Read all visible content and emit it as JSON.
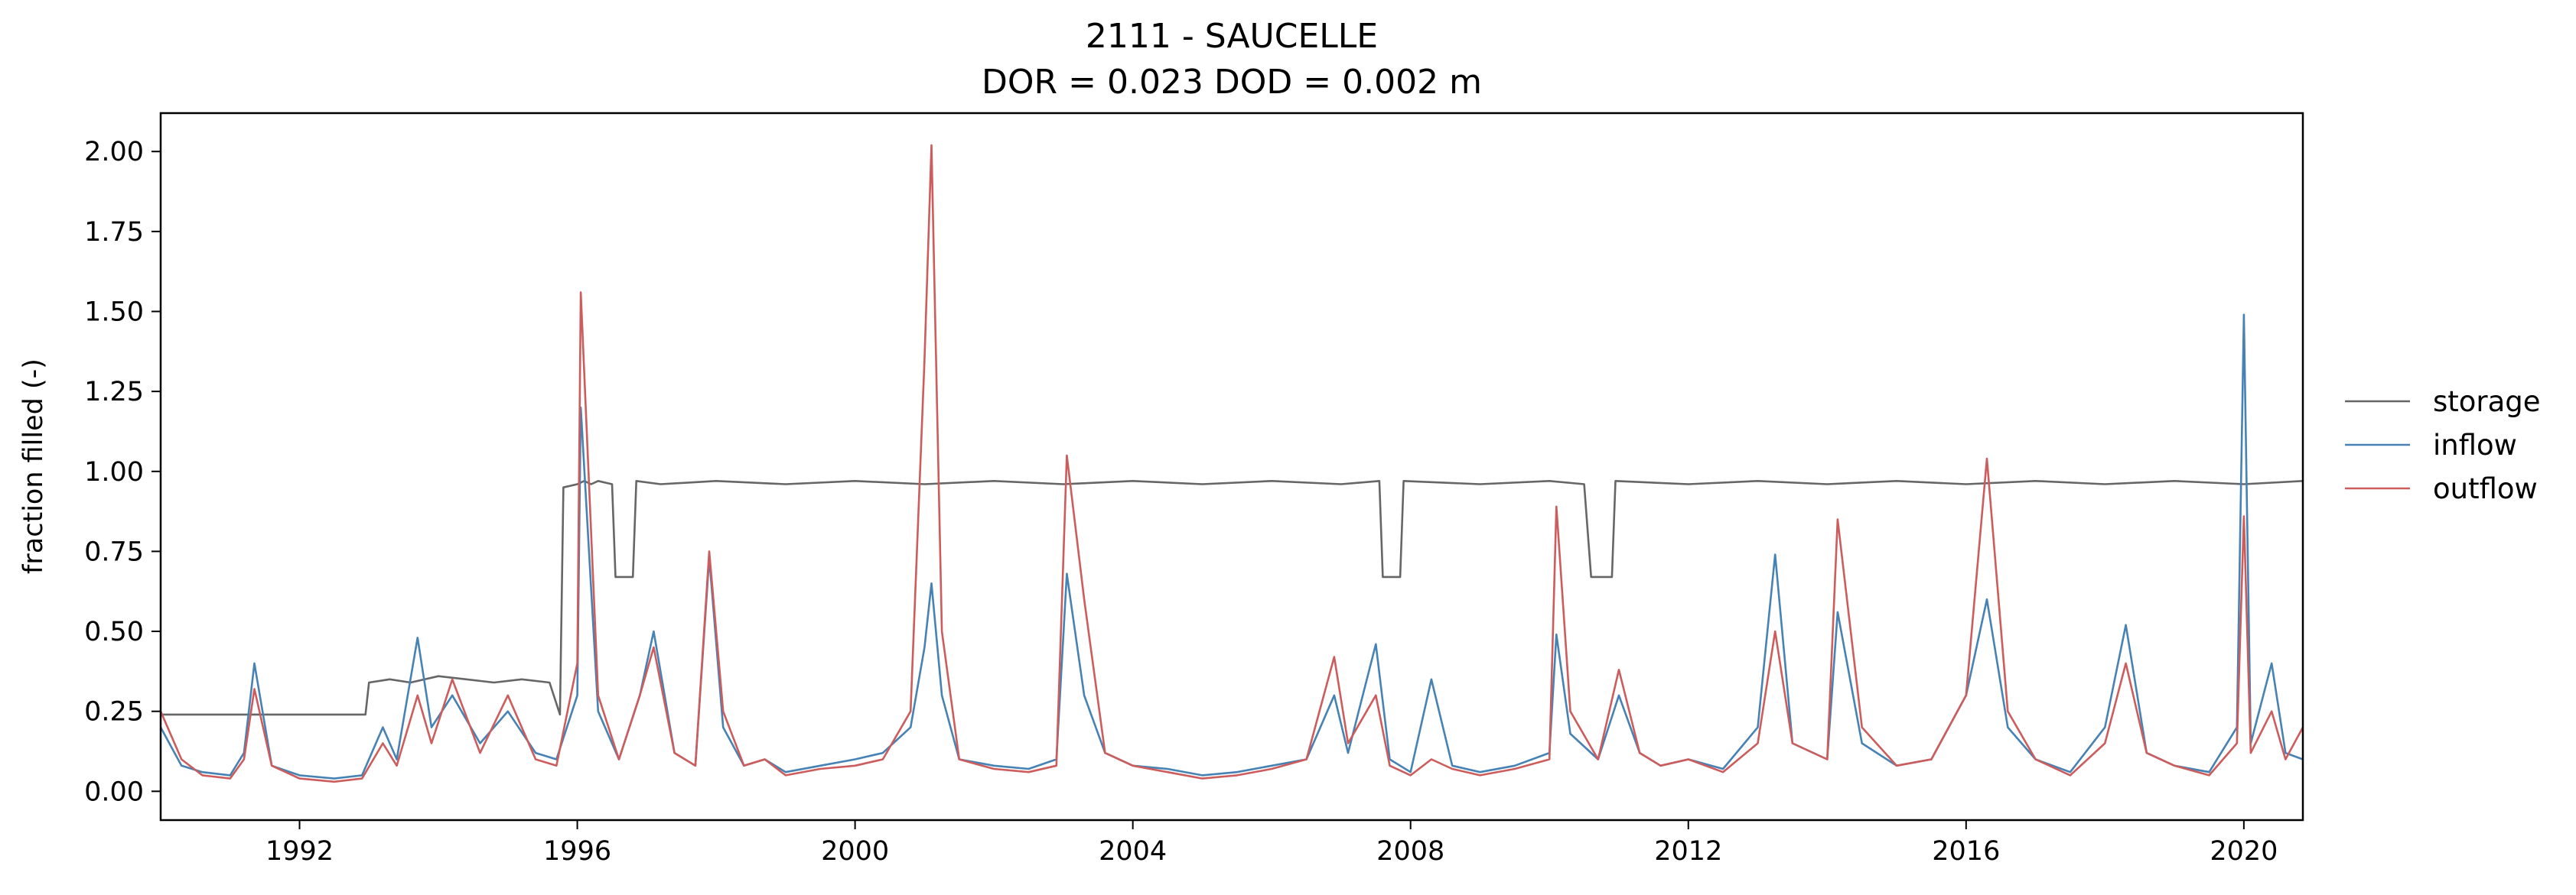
{
  "chart_data": {
    "type": "line",
    "title": "2111 - SAUCELLE",
    "subtitle": "DOR = 0.023  DOD = 0.002 m",
    "xlabel": "",
    "ylabel": "fraction filled (-)",
    "xlim": [
      1990.0,
      2020.85
    ],
    "ylim": [
      -0.09,
      2.12
    ],
    "x_ticks": [
      1992,
      1996,
      2000,
      2004,
      2008,
      2012,
      2016,
      2020
    ],
    "x_tick_labels": [
      "1992",
      "1996",
      "2000",
      "2004",
      "2008",
      "2012",
      "2016",
      "2020"
    ],
    "y_ticks": [
      0.0,
      0.25,
      0.5,
      0.75,
      1.0,
      1.25,
      1.5,
      1.75,
      2.0
    ],
    "y_tick_labels": [
      "0.00",
      "0.25",
      "0.50",
      "0.75",
      "1.00",
      "1.25",
      "1.50",
      "1.75",
      "2.00"
    ],
    "grid": false,
    "legend_position": "right",
    "series": [
      {
        "name": "storage",
        "color": "#666666",
        "x": [
          1990.0,
          1992.95,
          1993.0,
          1993.3,
          1993.6,
          1994.0,
          1994.4,
          1994.8,
          1995.2,
          1995.6,
          1995.75,
          1995.8,
          1996.0,
          1996.1,
          1996.2,
          1996.3,
          1996.5,
          1996.55,
          1996.6,
          1996.8,
          1996.85,
          1997.2,
          1998.0,
          1999.0,
          2000.0,
          2001.0,
          2002.0,
          2003.0,
          2004.0,
          2005.0,
          2006.0,
          2007.0,
          2007.55,
          2007.6,
          2007.85,
          2007.9,
          2009.0,
          2010.0,
          2010.5,
          2010.6,
          2010.9,
          2010.95,
          2012.0,
          2013.0,
          2014.0,
          2015.0,
          2016.0,
          2017.0,
          2018.0,
          2019.0,
          2020.0,
          2020.85
        ],
        "y": [
          0.24,
          0.24,
          0.34,
          0.35,
          0.34,
          0.36,
          0.35,
          0.34,
          0.35,
          0.34,
          0.24,
          0.95,
          0.96,
          0.97,
          0.96,
          0.97,
          0.96,
          0.67,
          0.67,
          0.67,
          0.97,
          0.96,
          0.97,
          0.96,
          0.97,
          0.96,
          0.97,
          0.96,
          0.97,
          0.96,
          0.97,
          0.96,
          0.97,
          0.67,
          0.67,
          0.97,
          0.96,
          0.97,
          0.96,
          0.67,
          0.67,
          0.97,
          0.96,
          0.97,
          0.96,
          0.97,
          0.96,
          0.97,
          0.96,
          0.97,
          0.96,
          0.97
        ]
      },
      {
        "name": "inflow",
        "color": "#4682b4",
        "x": [
          1990.0,
          1990.3,
          1990.6,
          1991.0,
          1991.2,
          1991.35,
          1991.6,
          1992.0,
          1992.5,
          1992.9,
          1993.2,
          1993.4,
          1993.7,
          1993.9,
          1994.2,
          1994.6,
          1995.0,
          1995.4,
          1995.7,
          1996.0,
          1996.05,
          1996.3,
          1996.6,
          1996.9,
          1997.1,
          1997.4,
          1997.7,
          1997.9,
          1998.1,
          1998.4,
          1998.7,
          1999.0,
          1999.5,
          2000.0,
          2000.4,
          2000.8,
          2001.0,
          2001.1,
          2001.25,
          2001.5,
          2002.0,
          2002.5,
          2002.9,
          2003.05,
          2003.3,
          2003.6,
          2004.0,
          2004.5,
          2005.0,
          2005.5,
          2006.0,
          2006.5,
          2006.9,
          2007.1,
          2007.5,
          2007.7,
          2008.0,
          2008.3,
          2008.6,
          2009.0,
          2009.5,
          2010.0,
          2010.1,
          2010.3,
          2010.7,
          2011.0,
          2011.3,
          2011.6,
          2012.0,
          2012.5,
          2013.0,
          2013.25,
          2013.5,
          2014.0,
          2014.15,
          2014.5,
          2015.0,
          2015.5,
          2016.0,
          2016.3,
          2016.6,
          2017.0,
          2017.5,
          2018.0,
          2018.3,
          2018.6,
          2019.0,
          2019.5,
          2019.9,
          2020.0,
          2020.1,
          2020.4,
          2020.6,
          2020.85
        ],
        "y": [
          0.2,
          0.08,
          0.06,
          0.05,
          0.12,
          0.4,
          0.08,
          0.05,
          0.04,
          0.05,
          0.2,
          0.1,
          0.48,
          0.2,
          0.3,
          0.15,
          0.25,
          0.12,
          0.1,
          0.3,
          1.2,
          0.25,
          0.1,
          0.3,
          0.5,
          0.12,
          0.08,
          0.73,
          0.2,
          0.08,
          0.1,
          0.06,
          0.08,
          0.1,
          0.12,
          0.2,
          0.45,
          0.65,
          0.3,
          0.1,
          0.08,
          0.07,
          0.1,
          0.68,
          0.3,
          0.12,
          0.08,
          0.07,
          0.05,
          0.06,
          0.08,
          0.1,
          0.3,
          0.12,
          0.46,
          0.1,
          0.06,
          0.35,
          0.08,
          0.06,
          0.08,
          0.12,
          0.49,
          0.18,
          0.1,
          0.3,
          0.12,
          0.08,
          0.1,
          0.07,
          0.2,
          0.74,
          0.15,
          0.1,
          0.56,
          0.15,
          0.08,
          0.1,
          0.3,
          0.6,
          0.2,
          0.1,
          0.06,
          0.2,
          0.52,
          0.12,
          0.08,
          0.06,
          0.2,
          1.49,
          0.15,
          0.4,
          0.12,
          0.1
        ]
      },
      {
        "name": "outflow",
        "color": "#cd5c5c",
        "x": [
          1990.0,
          1990.3,
          1990.6,
          1991.0,
          1991.2,
          1991.35,
          1991.6,
          1992.0,
          1992.5,
          1992.9,
          1993.2,
          1993.4,
          1993.7,
          1993.9,
          1994.2,
          1994.6,
          1995.0,
          1995.4,
          1995.7,
          1996.0,
          1996.05,
          1996.3,
          1996.6,
          1996.9,
          1997.1,
          1997.4,
          1997.7,
          1997.9,
          1998.1,
          1998.4,
          1998.7,
          1999.0,
          1999.5,
          2000.0,
          2000.4,
          2000.8,
          2001.0,
          2001.1,
          2001.25,
          2001.5,
          2002.0,
          2002.5,
          2002.9,
          2003.05,
          2003.3,
          2003.6,
          2004.0,
          2004.5,
          2005.0,
          2005.5,
          2006.0,
          2006.5,
          2006.9,
          2007.1,
          2007.5,
          2007.7,
          2008.0,
          2008.3,
          2008.6,
          2009.0,
          2009.5,
          2010.0,
          2010.1,
          2010.3,
          2010.7,
          2011.0,
          2011.3,
          2011.6,
          2012.0,
          2012.5,
          2013.0,
          2013.25,
          2013.5,
          2014.0,
          2014.15,
          2014.5,
          2015.0,
          2015.5,
          2016.0,
          2016.3,
          2016.6,
          2017.0,
          2017.5,
          2018.0,
          2018.3,
          2018.6,
          2019.0,
          2019.5,
          2019.9,
          2020.0,
          2020.1,
          2020.4,
          2020.6,
          2020.85
        ],
        "y": [
          0.25,
          0.1,
          0.05,
          0.04,
          0.1,
          0.32,
          0.08,
          0.04,
          0.03,
          0.04,
          0.15,
          0.08,
          0.3,
          0.15,
          0.35,
          0.12,
          0.3,
          0.1,
          0.08,
          0.4,
          1.56,
          0.3,
          0.1,
          0.3,
          0.45,
          0.12,
          0.08,
          0.75,
          0.25,
          0.08,
          0.1,
          0.05,
          0.07,
          0.08,
          0.1,
          0.25,
          1.35,
          2.02,
          0.5,
          0.1,
          0.07,
          0.06,
          0.08,
          1.05,
          0.6,
          0.12,
          0.08,
          0.06,
          0.04,
          0.05,
          0.07,
          0.1,
          0.42,
          0.15,
          0.3,
          0.08,
          0.05,
          0.1,
          0.07,
          0.05,
          0.07,
          0.1,
          0.89,
          0.25,
          0.1,
          0.38,
          0.12,
          0.08,
          0.1,
          0.06,
          0.15,
          0.5,
          0.15,
          0.1,
          0.85,
          0.2,
          0.08,
          0.1,
          0.3,
          1.04,
          0.25,
          0.1,
          0.05,
          0.15,
          0.4,
          0.12,
          0.08,
          0.05,
          0.15,
          0.86,
          0.12,
          0.25,
          0.1,
          0.2
        ]
      }
    ]
  }
}
